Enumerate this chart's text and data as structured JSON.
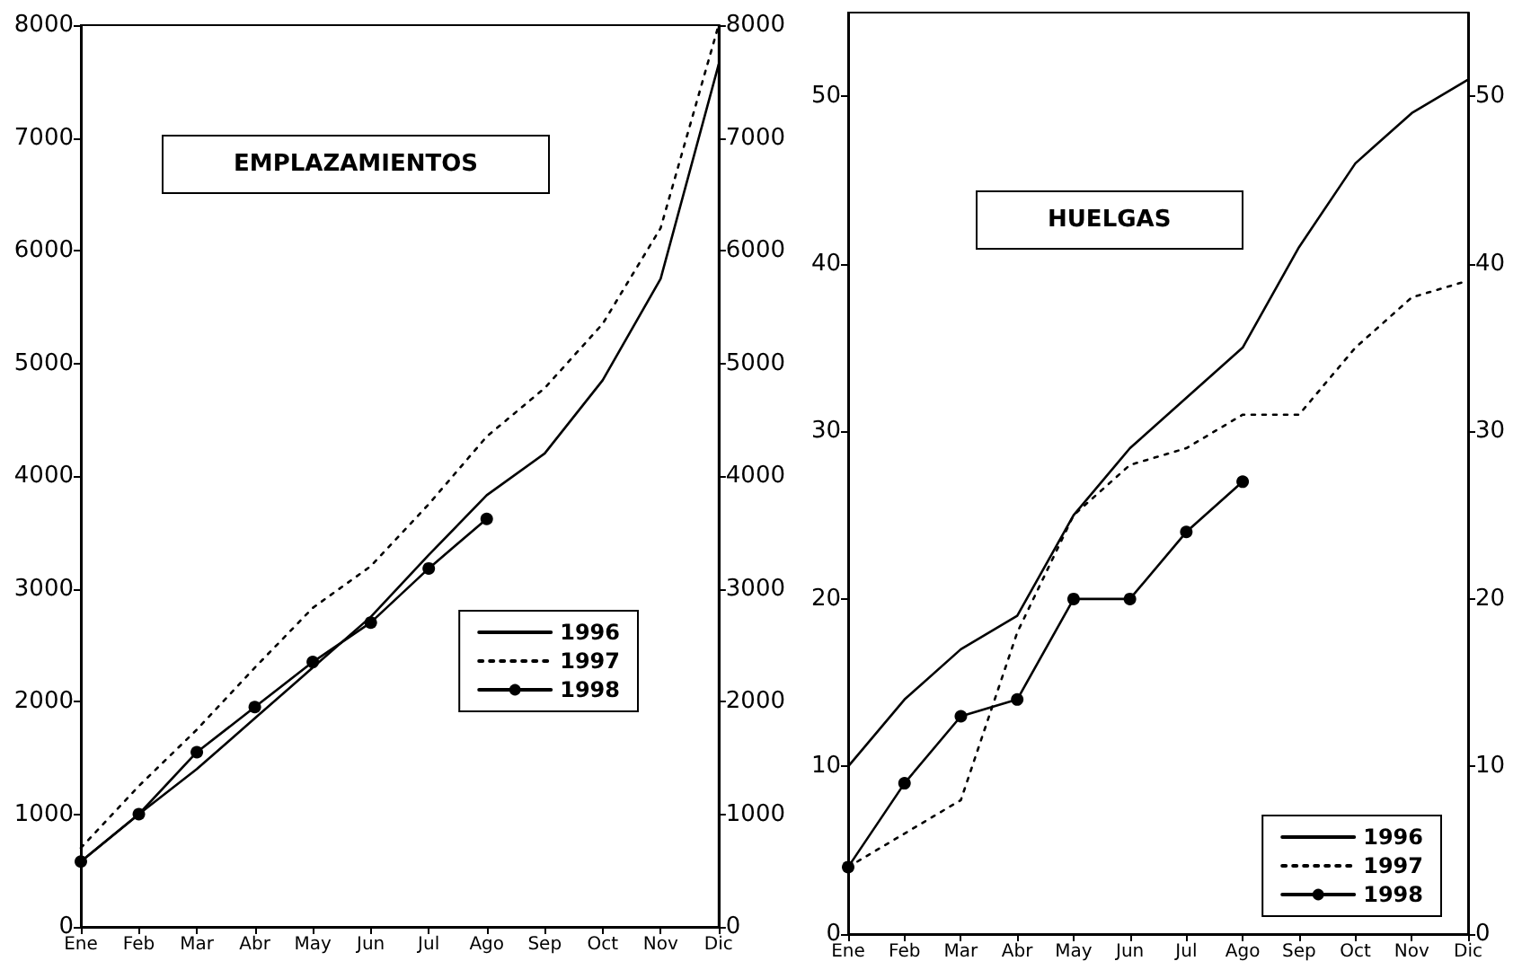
{
  "chart_data": [
    {
      "type": "line",
      "title": "EMPLAZAMIENTOS",
      "categories": [
        "Ene",
        "Feb",
        "Mar",
        "Abr",
        "May",
        "Jun",
        "Jul",
        "Ago",
        "Sep",
        "Oct",
        "Nov",
        "Dic"
      ],
      "series": [
        {
          "name": "1996",
          "color": "#000000",
          "line_style": "solid",
          "marker": "none",
          "values": [
            580,
            1000,
            1400,
            1850,
            2300,
            2750,
            3300,
            3830,
            4200,
            4850,
            5750,
            7650
          ]
        },
        {
          "name": "1997",
          "color": "#000000",
          "line_style": "dotted",
          "marker": "none",
          "values": [
            700,
            1250,
            1750,
            2300,
            2830,
            3200,
            3750,
            4350,
            4780,
            5350,
            6200,
            8000
          ]
        },
        {
          "name": "1998",
          "color": "#000000",
          "line_style": "solid",
          "marker": "circle",
          "values": [
            580,
            1000,
            1550,
            1950,
            2350,
            2700,
            3180,
            3620,
            null,
            null,
            null,
            null
          ]
        }
      ],
      "ylim": [
        0,
        8000
      ],
      "yticks": [
        0,
        1000,
        2000,
        3000,
        4000,
        5000,
        6000,
        7000,
        8000
      ],
      "y2lim": [
        0,
        8000
      ],
      "y2ticks": [
        0,
        1000,
        2000,
        3000,
        4000,
        5000,
        6000,
        7000,
        8000
      ],
      "grid": false,
      "legend": "right"
    },
    {
      "type": "line",
      "title": "HUELGAS",
      "categories": [
        "Ene",
        "Feb",
        "Mar",
        "Abr",
        "May",
        "Jun",
        "Jul",
        "Ago",
        "Sep",
        "Oct",
        "Nov",
        "Dic"
      ],
      "series": [
        {
          "name": "1996",
          "color": "#000000",
          "line_style": "solid",
          "marker": "none",
          "values": [
            10,
            14,
            17,
            19,
            25,
            29,
            32,
            35,
            41,
            46,
            49,
            51
          ]
        },
        {
          "name": "1997",
          "color": "#000000",
          "line_style": "dotted",
          "marker": "none",
          "values": [
            4,
            6,
            8,
            18,
            25,
            28,
            29,
            31,
            31,
            35,
            38,
            39
          ]
        },
        {
          "name": "1998",
          "color": "#000000",
          "line_style": "solid",
          "marker": "circle",
          "values": [
            4,
            9,
            13,
            14,
            20,
            20,
            24,
            27,
            null,
            null,
            null,
            null
          ]
        }
      ],
      "ylim": [
        0,
        55
      ],
      "yticks": [
        0,
        10,
        20,
        30,
        40,
        50
      ],
      "y2lim": [
        0,
        55
      ],
      "y2ticks": [
        0,
        10,
        20,
        30,
        40,
        50
      ],
      "grid": false,
      "legend": "bottom right"
    }
  ]
}
